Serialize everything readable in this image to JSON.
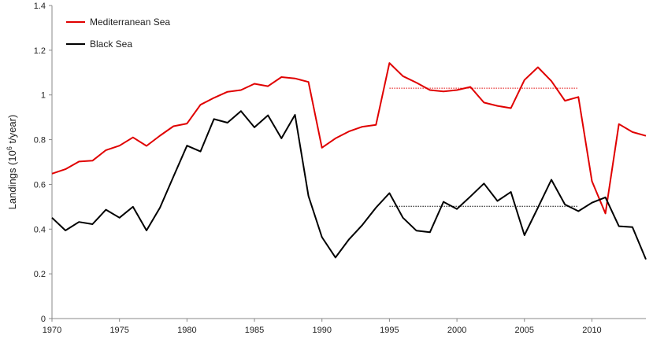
{
  "chart_data": {
    "type": "line",
    "title": "",
    "xlabel": "",
    "ylabel": {
      "prefix": "Landings (10",
      "superscript": "6",
      "suffix": " t/year)"
    },
    "xlim": [
      1970,
      2014
    ],
    "ylim": [
      0,
      1.4
    ],
    "xticks": [
      1970,
      1975,
      1980,
      1985,
      1990,
      1995,
      2000,
      2005,
      2010
    ],
    "yticks": [
      "0",
      "0.2",
      "0.4",
      "0.6",
      "0.8",
      "1",
      "1.2",
      "1.4"
    ],
    "grid": false,
    "legend_position": "top-left",
    "series": [
      {
        "name": "Mediterranean Sea",
        "color": "#e00000",
        "x": [
          1970,
          1971,
          1972,
          1973,
          1974,
          1975,
          1976,
          1977,
          1978,
          1979,
          1980,
          1981,
          1982,
          1983,
          1984,
          1985,
          1986,
          1987,
          1988,
          1989,
          1990,
          1991,
          1992,
          1993,
          1994,
          1995,
          1996,
          1997,
          1998,
          1999,
          2000,
          2001,
          2002,
          2003,
          2004,
          2005,
          2006,
          2007,
          2008,
          2009,
          2010,
          2011,
          2012,
          2013,
          2014
        ],
        "values": [
          0.648,
          0.668,
          0.702,
          0.706,
          0.753,
          0.773,
          0.81,
          0.772,
          0.818,
          0.86,
          0.872,
          0.956,
          0.987,
          1.014,
          1.022,
          1.05,
          1.039,
          1.08,
          1.074,
          1.058,
          0.764,
          0.806,
          0.837,
          0.858,
          0.866,
          1.143,
          1.084,
          1.055,
          1.022,
          1.016,
          1.022,
          1.036,
          0.966,
          0.951,
          0.941,
          1.067,
          1.124,
          1.062,
          0.974,
          0.991,
          0.614,
          0.47,
          0.87,
          0.834,
          0.817
        ]
      },
      {
        "name": "Black Sea",
        "color": "#000000",
        "x": [
          1970,
          1971,
          1972,
          1973,
          1974,
          1975,
          1976,
          1977,
          1978,
          1979,
          1980,
          1981,
          1982,
          1983,
          1984,
          1985,
          1986,
          1987,
          1988,
          1989,
          1990,
          1991,
          1992,
          1993,
          1994,
          1995,
          1996,
          1997,
          1998,
          1999,
          2000,
          2001,
          2002,
          2003,
          2004,
          2005,
          2006,
          2007,
          2008,
          2009,
          2010,
          2011,
          2012,
          2013,
          2014
        ],
        "values": [
          0.451,
          0.394,
          0.432,
          0.422,
          0.487,
          0.451,
          0.5,
          0.394,
          0.496,
          0.635,
          0.773,
          0.747,
          0.892,
          0.876,
          0.928,
          0.855,
          0.909,
          0.806,
          0.911,
          0.548,
          0.364,
          0.273,
          0.354,
          0.419,
          0.496,
          0.561,
          0.451,
          0.393,
          0.386,
          0.522,
          0.49,
          0.546,
          0.604,
          0.526,
          0.566,
          0.373,
          0.496,
          0.621,
          0.51,
          0.48,
          0.518,
          0.542,
          0.413,
          0.409,
          0.265
        ]
      }
    ],
    "reference_lines": [
      {
        "series": "Mediterranean Sea",
        "color": "#e00000",
        "x": [
          1995,
          2009
        ],
        "value": 1.03
      },
      {
        "series": "Black Sea",
        "color": "#000000",
        "x": [
          1995,
          2009
        ],
        "value": 0.502
      }
    ]
  }
}
